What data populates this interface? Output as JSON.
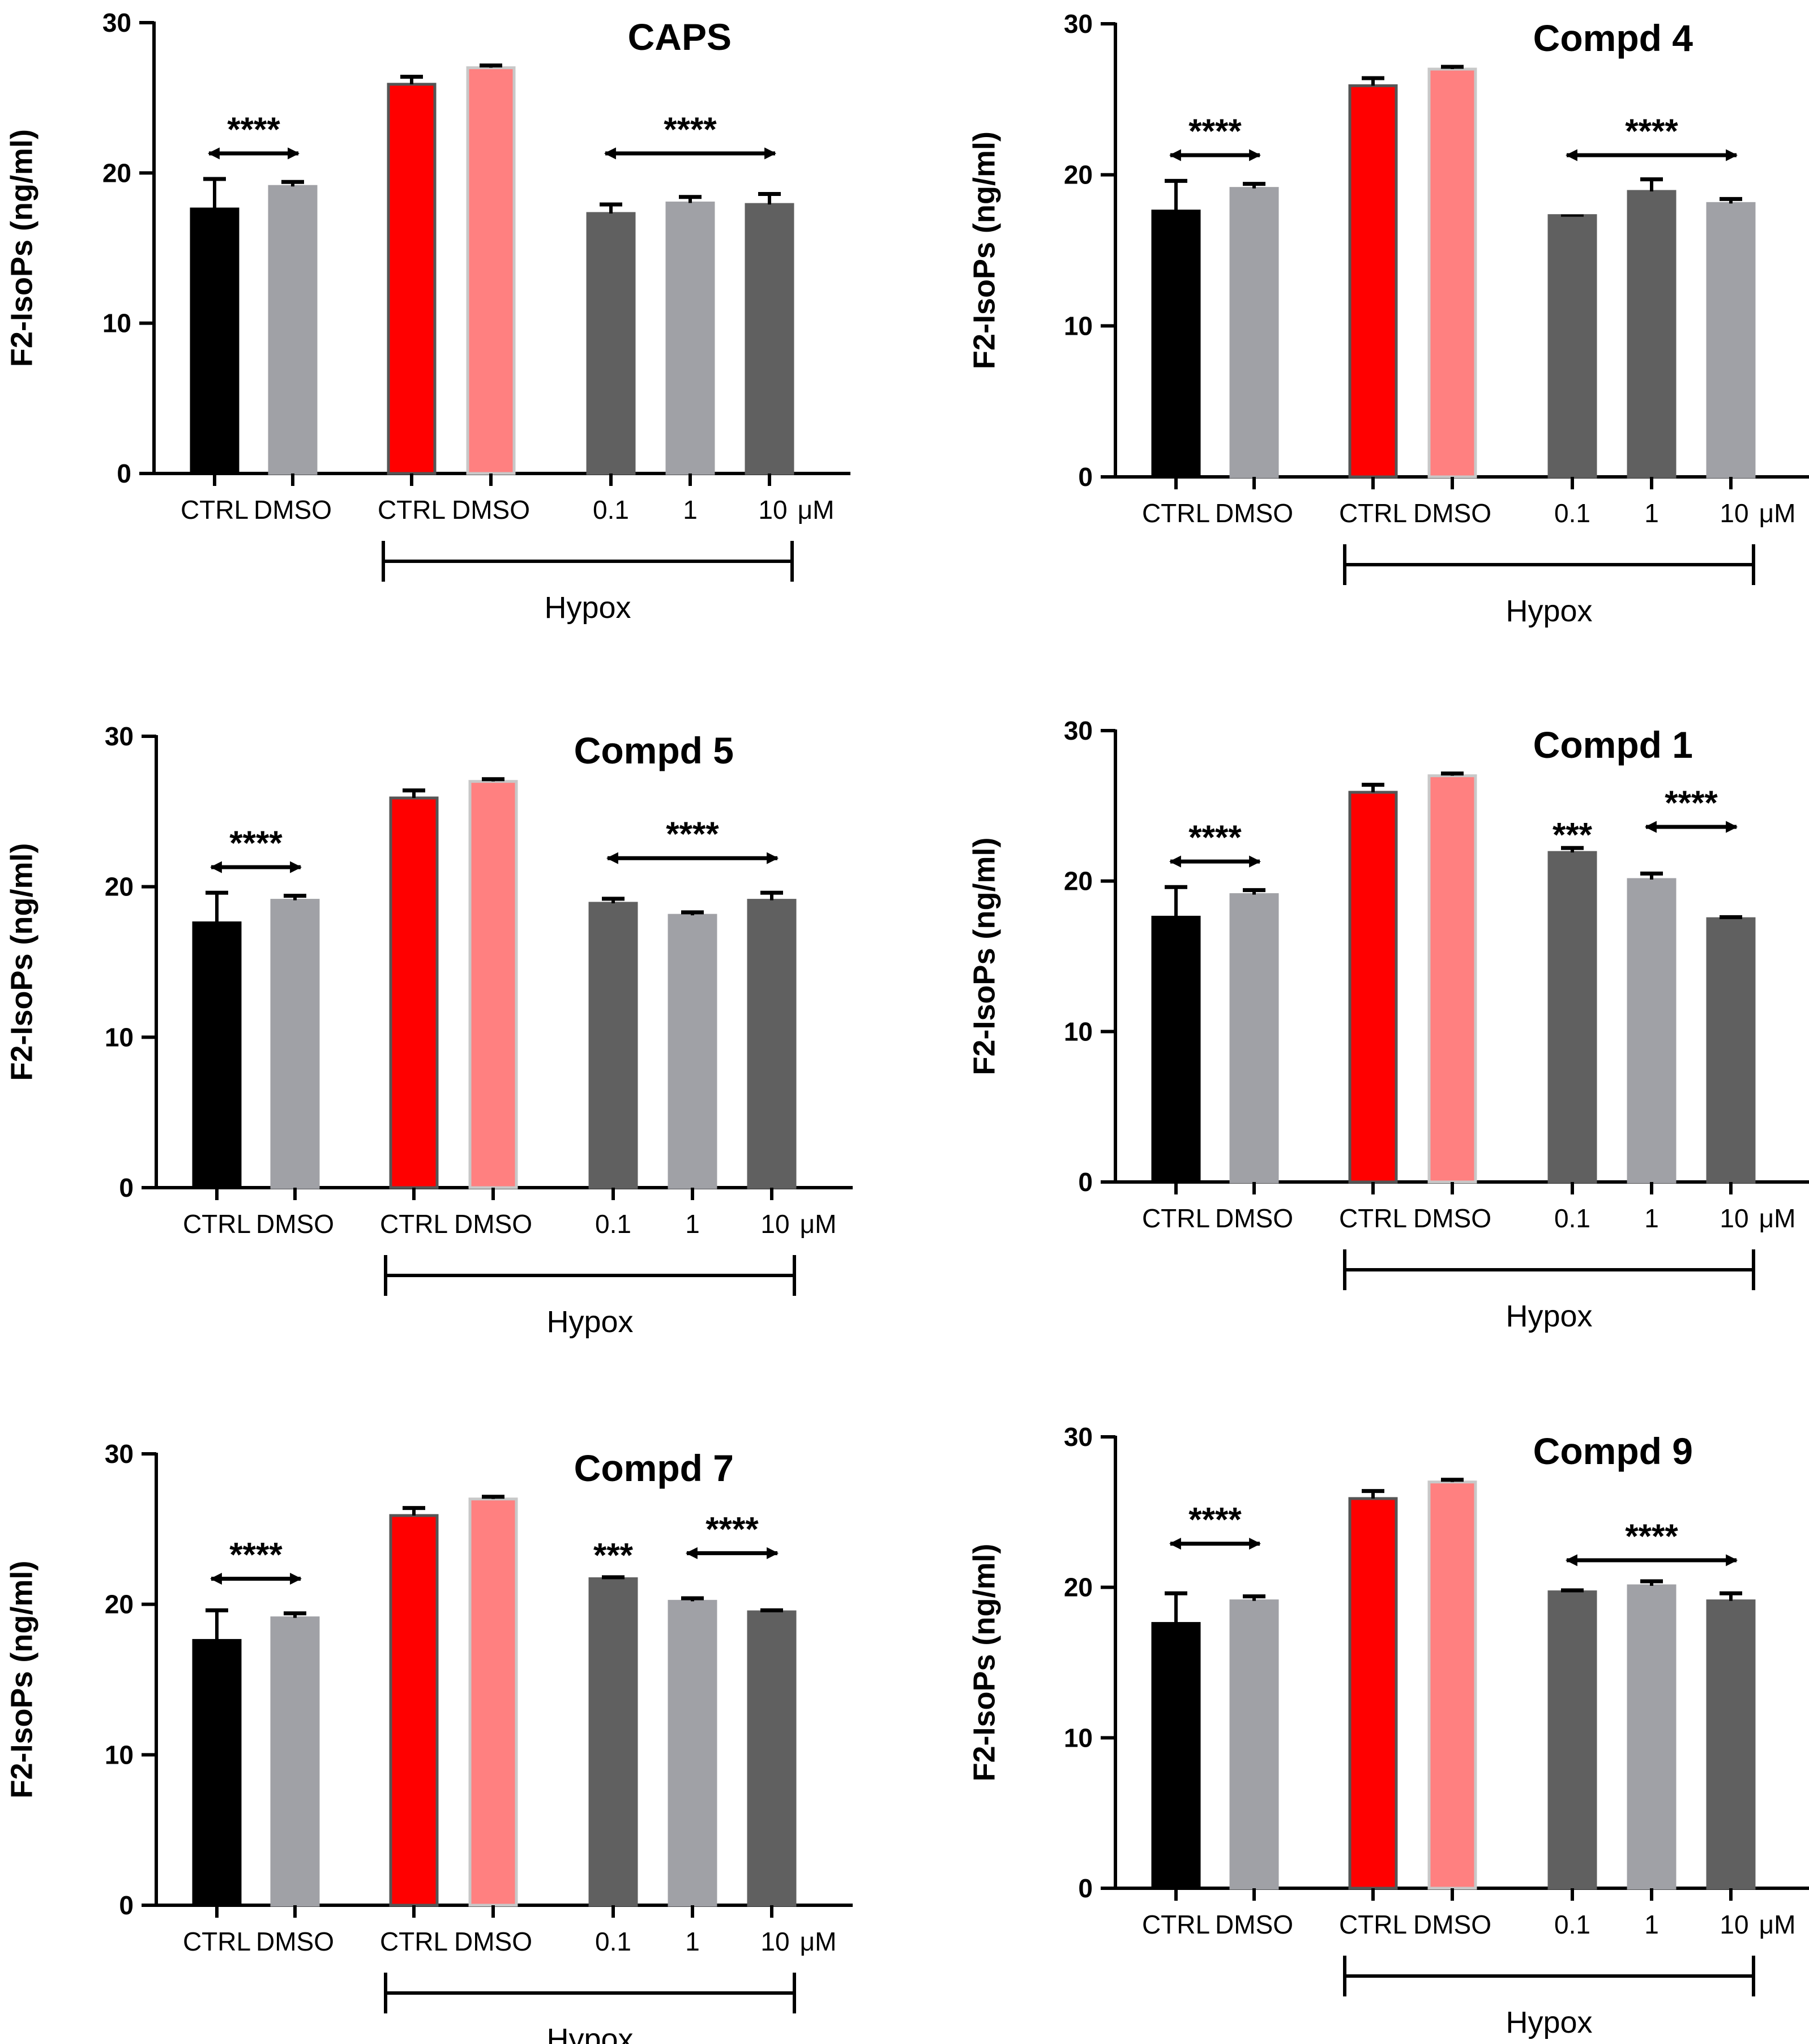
{
  "figure": {
    "y_label": "F2-IsoPs (ng/ml)",
    "group_label": "Hypox",
    "unit_label": "μM"
  },
  "chart_data": [
    {
      "type": "bar",
      "title": "CAPS",
      "ylabel": "F2-IsoPs (ng/ml)",
      "ylim": [
        0,
        30
      ],
      "yticks": [
        "0",
        "10",
        "20",
        "30"
      ],
      "categories": [
        "CTRL",
        "DMSO",
        "CTRL",
        "DMSO",
        "0.1",
        "1",
        "10"
      ],
      "values": [
        17.6,
        19.1,
        25.9,
        27.0,
        17.3,
        18.0,
        17.9
      ],
      "errors": [
        2.0,
        0.3,
        0.5,
        0.15,
        0.6,
        0.4,
        0.7
      ],
      "colors": [
        "#000000",
        "#a0a1a6",
        "#ff0000",
        "#ff8080",
        "#606060",
        "#a0a1a6",
        "#606060"
      ],
      "significance": [
        {
          "label": "****",
          "from": 0,
          "to": 1,
          "y": 21.3
        },
        {
          "label": "****",
          "from": 4,
          "to": 6,
          "y": 21.3
        }
      ]
    },
    {
      "type": "bar",
      "title": "Compd 4",
      "ylabel": "F2-IsoPs (ng/ml)",
      "ylim": [
        0,
        30
      ],
      "yticks": [
        "0",
        "10",
        "20",
        "30"
      ],
      "categories": [
        "CTRL",
        "DMSO",
        "CTRL",
        "DMSO",
        "0.1",
        "1",
        "10"
      ],
      "values": [
        17.6,
        19.1,
        25.9,
        27.0,
        17.3,
        18.9,
        18.1
      ],
      "errors": [
        2.0,
        0.3,
        0.5,
        0.15,
        0.0,
        0.8,
        0.3
      ],
      "colors": [
        "#000000",
        "#a0a1a6",
        "#ff0000",
        "#ff8080",
        "#606060",
        "#606060",
        "#a0a1a6"
      ],
      "significance": [
        {
          "label": "****",
          "from": 0,
          "to": 1,
          "y": 21.3
        },
        {
          "label": "****",
          "from": 4,
          "to": 6,
          "y": 21.3
        }
      ]
    },
    {
      "type": "bar",
      "title": "Compd 5",
      "ylabel": "F2-IsoPs (ng/ml)",
      "ylim": [
        0,
        30
      ],
      "yticks": [
        "0",
        "10",
        "20",
        "30"
      ],
      "categories": [
        "CTRL",
        "DMSO",
        "CTRL",
        "DMSO",
        "0.1",
        "1",
        "10"
      ],
      "values": [
        17.6,
        19.1,
        25.9,
        27.0,
        18.9,
        18.1,
        19.1
      ],
      "errors": [
        2.0,
        0.3,
        0.5,
        0.15,
        0.3,
        0.2,
        0.5
      ],
      "colors": [
        "#000000",
        "#a0a1a6",
        "#ff0000",
        "#ff8080",
        "#606060",
        "#a0a1a6",
        "#606060"
      ],
      "significance": [
        {
          "label": "****",
          "from": 0,
          "to": 1,
          "y": 21.3
        },
        {
          "label": "****",
          "from": 4,
          "to": 6,
          "y": 21.9
        }
      ]
    },
    {
      "type": "bar",
      "title": "Compd 1",
      "ylabel": "F2-IsoPs (ng/ml)",
      "ylim": [
        0,
        30
      ],
      "yticks": [
        "0",
        "10",
        "20",
        "30"
      ],
      "categories": [
        "CTRL",
        "DMSO",
        "CTRL",
        "DMSO",
        "0.1",
        "1",
        "10"
      ],
      "values": [
        17.6,
        19.1,
        25.9,
        27.0,
        21.9,
        20.1,
        17.5
      ],
      "errors": [
        2.0,
        0.3,
        0.5,
        0.15,
        0.3,
        0.4,
        0.1
      ],
      "colors": [
        "#000000",
        "#a0a1a6",
        "#ff0000",
        "#ff8080",
        "#606060",
        "#a0a1a6",
        "#606060"
      ],
      "significance": [
        {
          "label": "****",
          "from": 0,
          "to": 1,
          "y": 21.3
        },
        {
          "label": "***",
          "from": 4,
          "to": 4,
          "y": 23.2
        },
        {
          "label": "****",
          "from": 5,
          "to": 6,
          "y": 23.6
        }
      ]
    },
    {
      "type": "bar",
      "title": "Compd 7",
      "ylabel": "F2-IsoPs (ng/ml)",
      "ylim": [
        0,
        30
      ],
      "yticks": [
        "0",
        "10",
        "20",
        "30"
      ],
      "categories": [
        "CTRL",
        "DMSO",
        "CTRL",
        "DMSO",
        "0.1",
        "1",
        "10"
      ],
      "values": [
        17.6,
        19.1,
        25.9,
        27.0,
        21.7,
        20.2,
        19.5
      ],
      "errors": [
        2.0,
        0.3,
        0.5,
        0.15,
        0.1,
        0.2,
        0.1
      ],
      "colors": [
        "#000000",
        "#a0a1a6",
        "#ff0000",
        "#ff8080",
        "#606060",
        "#a0a1a6",
        "#606060"
      ],
      "significance": [
        {
          "label": "****",
          "from": 0,
          "to": 1,
          "y": 21.7
        },
        {
          "label": "***",
          "from": 4,
          "to": 4,
          "y": 23.4
        },
        {
          "label": "****",
          "from": 5,
          "to": 6,
          "y": 23.4
        }
      ]
    },
    {
      "type": "bar",
      "title": "Compd 9",
      "ylabel": "F2-IsoPs (ng/ml)",
      "ylim": [
        0,
        30
      ],
      "yticks": [
        "0",
        "10",
        "20",
        "30"
      ],
      "categories": [
        "CTRL",
        "DMSO",
        "CTRL",
        "DMSO",
        "0.1",
        "1",
        "10"
      ],
      "values": [
        17.6,
        19.1,
        25.9,
        27.0,
        19.7,
        20.1,
        19.1
      ],
      "errors": [
        2.0,
        0.3,
        0.5,
        0.15,
        0.1,
        0.3,
        0.5
      ],
      "colors": [
        "#000000",
        "#a0a1a6",
        "#ff0000",
        "#ff8080",
        "#606060",
        "#a0a1a6",
        "#606060"
      ],
      "significance": [
        {
          "label": "****",
          "from": 0,
          "to": 1,
          "y": 22.9
        },
        {
          "label": "****",
          "from": 4,
          "to": 6,
          "y": 21.8
        }
      ]
    }
  ]
}
